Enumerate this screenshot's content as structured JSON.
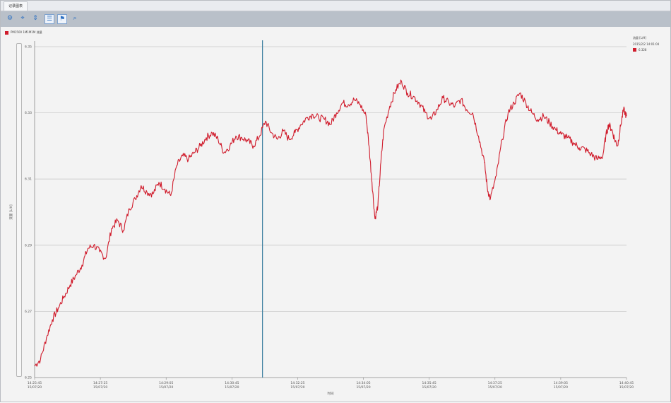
{
  "window": {
    "tab_title": "记录图表"
  },
  "toolbar": {
    "buttons": [
      {
        "name": "settings-icon",
        "glyph": "⚙"
      },
      {
        "name": "crosshair-icon",
        "glyph": "⌖"
      },
      {
        "name": "vertical-arrows-icon",
        "glyph": "⇕"
      },
      {
        "name": "list-icon",
        "glyph": "☰"
      },
      {
        "name": "flag-icon",
        "glyph": "⚑"
      },
      {
        "name": "zoom-icon",
        "glyph": "⌕"
      }
    ]
  },
  "series_header": {
    "label": "PM1500 1M1M1M 流量",
    "color": "#d01c2c"
  },
  "legend": {
    "title": "流量 [L/H]",
    "timestamp": "2015/2/2 14:01:04",
    "entry_value": "6.328",
    "entry_color": "#d01c2c"
  },
  "chart_data": {
    "type": "line",
    "ylabel": "流量 [L/H]",
    "xlabel": "时间",
    "ylim": [
      6.25,
      6.35
    ],
    "yticks": [
      "6.25",
      "6.27",
      "6.29",
      "6.31",
      "6.33",
      "6.35"
    ],
    "xticks": [
      {
        "time": "14:25:45",
        "date": "15/07/20"
      },
      {
        "time": "14:27:25",
        "date": "15/07/20"
      },
      {
        "time": "14:29:05",
        "date": "15/07/20"
      },
      {
        "time": "14:30:45",
        "date": "15/07/20"
      },
      {
        "time": "14:32:25",
        "date": "15/07/20"
      },
      {
        "time": "14:34:05",
        "date": "15/07/20"
      },
      {
        "time": "14:35:45",
        "date": "15/07/20"
      },
      {
        "time": "14:37:25",
        "date": "15/07/20"
      },
      {
        "time": "14:39:05",
        "date": "15/07/20"
      },
      {
        "time": "14:40:45",
        "date": "15/07/20"
      }
    ],
    "cursor_x_fraction": 0.385,
    "grid": true,
    "series": [
      {
        "color": "#d01c2c",
        "points": [
          [
            0.0,
            6.2535
          ],
          [
            0.01,
            6.2555
          ],
          [
            0.02,
            6.262
          ],
          [
            0.03,
            6.2675
          ],
          [
            0.04,
            6.271
          ],
          [
            0.05,
            6.2745
          ],
          [
            0.06,
            6.278
          ],
          [
            0.07,
            6.281
          ],
          [
            0.08,
            6.284
          ],
          [
            0.09,
            6.289
          ],
          [
            0.1,
            6.29
          ],
          [
            0.11,
            6.288
          ],
          [
            0.12,
            6.286
          ],
          [
            0.13,
            6.295
          ],
          [
            0.14,
            6.2975
          ],
          [
            0.15,
            6.2945
          ],
          [
            0.16,
            6.301
          ],
          [
            0.17,
            6.304
          ],
          [
            0.18,
            6.308
          ],
          [
            0.19,
            6.306
          ],
          [
            0.2,
            6.3055
          ],
          [
            0.21,
            6.309
          ],
          [
            0.22,
            6.307
          ],
          [
            0.23,
            6.305
          ],
          [
            0.24,
            6.314
          ],
          [
            0.25,
            6.317
          ],
          [
            0.26,
            6.316
          ],
          [
            0.27,
            6.318
          ],
          [
            0.28,
            6.32
          ],
          [
            0.29,
            6.3225
          ],
          [
            0.3,
            6.324
          ],
          [
            0.31,
            6.322
          ],
          [
            0.32,
            6.318
          ],
          [
            0.33,
            6.32
          ],
          [
            0.34,
            6.323
          ],
          [
            0.35,
            6.3225
          ],
          [
            0.36,
            6.3215
          ],
          [
            0.37,
            6.32
          ],
          [
            0.38,
            6.323
          ],
          [
            0.39,
            6.3275
          ],
          [
            0.4,
            6.324
          ],
          [
            0.41,
            6.322
          ],
          [
            0.42,
            6.3245
          ],
          [
            0.43,
            6.322
          ],
          [
            0.44,
            6.324
          ],
          [
            0.45,
            6.3265
          ],
          [
            0.46,
            6.3285
          ],
          [
            0.47,
            6.3295
          ],
          [
            0.48,
            6.3285
          ],
          [
            0.49,
            6.328
          ],
          [
            0.5,
            6.3265
          ],
          [
            0.51,
            6.33
          ],
          [
            0.52,
            6.333
          ],
          [
            0.53,
            6.3325
          ],
          [
            0.54,
            6.334
          ],
          [
            0.55,
            6.3325
          ],
          [
            0.56,
            6.329
          ],
          [
            0.565,
            6.32
          ],
          [
            0.57,
            6.309
          ],
          [
            0.575,
            6.298
          ],
          [
            0.58,
            6.302
          ],
          [
            0.585,
            6.315
          ],
          [
            0.59,
            6.325
          ],
          [
            0.6,
            6.332
          ],
          [
            0.61,
            6.337
          ],
          [
            0.62,
            6.3395
          ],
          [
            0.63,
            6.336
          ],
          [
            0.64,
            6.335
          ],
          [
            0.65,
            6.333
          ],
          [
            0.66,
            6.33
          ],
          [
            0.67,
            6.328
          ],
          [
            0.68,
            6.331
          ],
          [
            0.69,
            6.3345
          ],
          [
            0.7,
            6.333
          ],
          [
            0.71,
            6.332
          ],
          [
            0.72,
            6.334
          ],
          [
            0.73,
            6.331
          ],
          [
            0.74,
            6.33
          ],
          [
            0.75,
            6.323
          ],
          [
            0.76,
            6.315
          ],
          [
            0.765,
            6.307
          ],
          [
            0.77,
            6.304
          ],
          [
            0.78,
            6.311
          ],
          [
            0.79,
            6.322
          ],
          [
            0.8,
            6.33
          ],
          [
            0.81,
            6.333
          ],
          [
            0.82,
            6.336
          ],
          [
            0.83,
            6.333
          ],
          [
            0.84,
            6.33
          ],
          [
            0.85,
            6.328
          ],
          [
            0.86,
            6.329
          ],
          [
            0.87,
            6.327
          ],
          [
            0.88,
            6.325
          ],
          [
            0.89,
            6.3235
          ],
          [
            0.9,
            6.3225
          ],
          [
            0.91,
            6.321
          ],
          [
            0.92,
            6.3195
          ],
          [
            0.93,
            6.319
          ],
          [
            0.94,
            6.3175
          ],
          [
            0.95,
            6.316
          ],
          [
            0.96,
            6.317
          ],
          [
            0.965,
            6.323
          ],
          [
            0.97,
            6.3265
          ],
          [
            0.975,
            6.325
          ],
          [
            0.98,
            6.322
          ],
          [
            0.985,
            6.32
          ],
          [
            0.99,
            6.326
          ],
          [
            0.995,
            6.331
          ],
          [
            1.0,
            6.329
          ]
        ]
      }
    ]
  }
}
